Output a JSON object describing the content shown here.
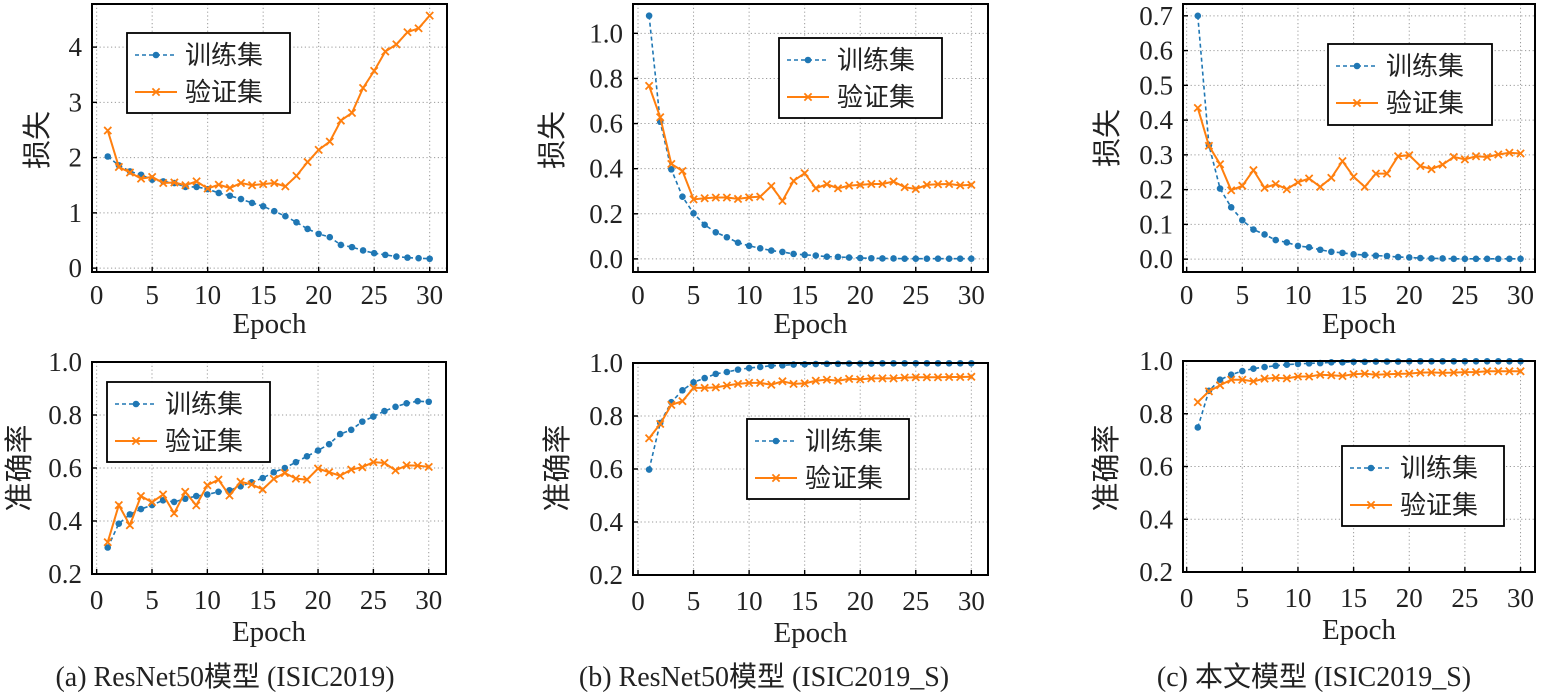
{
  "figure": {
    "captions": [
      "(a) ResNet50模型 (ISIC2019)",
      "(b) ResNet50模型 (ISIC2019_S)",
      "(c) 本文模型 (ISIC2019_S)"
    ]
  },
  "styles": {
    "train_color": "#1f77b4",
    "val_color": "#ff7f0e",
    "grid_color": "#9a9a9a",
    "frame_color": "#000000"
  },
  "chart_data": [
    {
      "id": "a-loss",
      "panel": "(a) ResNet50模型 (ISIC2019)",
      "type": "line",
      "title": "",
      "xlabel": "Epoch",
      "ylabel": "损失",
      "xlim": [
        -0.42,
        31.56
      ],
      "ylim": [
        -0.07,
        4.78
      ],
      "grid": true,
      "legend_placement": "upper-left",
      "xticks": {
        "values": [
          0,
          5,
          10,
          15,
          20,
          25,
          30
        ],
        "labels": [
          "0",
          "5",
          "10",
          "15",
          "20",
          "25",
          "30"
        ]
      },
      "yticks": {
        "values": [
          0,
          1,
          2,
          3,
          4
        ],
        "labels": [
          "0",
          "1",
          "2",
          "3",
          "4"
        ]
      },
      "x": [
        1,
        2,
        3,
        4,
        5,
        6,
        7,
        8,
        9,
        10,
        11,
        12,
        13,
        14,
        15,
        16,
        17,
        18,
        19,
        20,
        21,
        22,
        23,
        24,
        25,
        26,
        27,
        28,
        29,
        30
      ],
      "series": [
        {
          "name": "训练集",
          "color": "#1f77b4",
          "line_style": "dashed",
          "marker": "circle",
          "values": [
            2.02,
            1.86,
            1.75,
            1.69,
            1.6,
            1.57,
            1.54,
            1.47,
            1.47,
            1.43,
            1.36,
            1.31,
            1.25,
            1.18,
            1.12,
            1.03,
            0.94,
            0.83,
            0.71,
            0.62,
            0.56,
            0.42,
            0.38,
            0.32,
            0.27,
            0.24,
            0.21,
            0.19,
            0.18,
            0.17
          ]
        },
        {
          "name": "验证集",
          "color": "#ff7f0e",
          "line_style": "solid",
          "marker": "x",
          "values": [
            2.49,
            1.83,
            1.73,
            1.62,
            1.65,
            1.54,
            1.55,
            1.5,
            1.57,
            1.44,
            1.51,
            1.45,
            1.54,
            1.5,
            1.52,
            1.54,
            1.48,
            1.67,
            1.92,
            2.14,
            2.29,
            2.67,
            2.81,
            3.26,
            3.57,
            3.92,
            4.05,
            4.27,
            4.34,
            4.57
          ]
        }
      ]
    },
    {
      "id": "a-acc",
      "panel": "(a) ResNet50模型 (ISIC2019)",
      "type": "line",
      "title": "",
      "xlabel": "Epoch",
      "ylabel": "准确率",
      "xlim": [
        -0.42,
        31.56
      ],
      "ylim": [
        0.2,
        1.0
      ],
      "grid": true,
      "legend_placement": "upper-left",
      "xticks": {
        "values": [
          0,
          5,
          10,
          15,
          20,
          25,
          30
        ],
        "labels": [
          "0",
          "5",
          "10",
          "15",
          "20",
          "25",
          "30"
        ]
      },
      "yticks": {
        "values": [
          0.2,
          0.4,
          0.6,
          0.8,
          1.0
        ],
        "labels": [
          "0.2",
          "0.4",
          "0.6",
          "0.8",
          "1.0"
        ]
      },
      "x": [
        1,
        2,
        3,
        4,
        5,
        6,
        7,
        8,
        9,
        10,
        11,
        12,
        13,
        14,
        15,
        16,
        17,
        18,
        19,
        20,
        21,
        22,
        23,
        24,
        25,
        26,
        27,
        28,
        29,
        30
      ],
      "series": [
        {
          "name": "训练集",
          "color": "#1f77b4",
          "line_style": "dashed",
          "marker": "circle",
          "values": [
            0.3,
            0.39,
            0.425,
            0.445,
            0.46,
            0.478,
            0.472,
            0.484,
            0.494,
            0.5,
            0.51,
            0.516,
            0.531,
            0.546,
            0.562,
            0.584,
            0.6,
            0.622,
            0.644,
            0.666,
            0.69,
            0.728,
            0.744,
            0.775,
            0.794,
            0.815,
            0.831,
            0.844,
            0.852,
            0.85
          ]
        },
        {
          "name": "验证集",
          "color": "#ff7f0e",
          "line_style": "solid",
          "marker": "x",
          "values": [
            0.32,
            0.46,
            0.384,
            0.494,
            0.471,
            0.5,
            0.429,
            0.51,
            0.459,
            0.535,
            0.556,
            0.496,
            0.548,
            0.538,
            0.519,
            0.559,
            0.581,
            0.56,
            0.556,
            0.598,
            0.584,
            0.571,
            0.594,
            0.603,
            0.622,
            0.619,
            0.591,
            0.61,
            0.609,
            0.604
          ]
        }
      ]
    },
    {
      "id": "b-loss",
      "panel": "(b) ResNet50模型 (ISIC2019_S)",
      "type": "line",
      "title": "",
      "xlabel": "Epoch",
      "ylabel": "损失",
      "xlim": [
        -0.45,
        31.5
      ],
      "ylim": [
        -0.058,
        1.13
      ],
      "grid": true,
      "legend_placement": "upper-right",
      "xticks": {
        "values": [
          0,
          5,
          10,
          15,
          20,
          25,
          30
        ],
        "labels": [
          "0",
          "5",
          "10",
          "15",
          "20",
          "25",
          "30"
        ]
      },
      "yticks": {
        "values": [
          0.0,
          0.2,
          0.4,
          0.6,
          0.8,
          1.0
        ],
        "labels": [
          "0.0",
          "0.2",
          "0.4",
          "0.6",
          "0.8",
          "1.0"
        ]
      },
      "x": [
        1,
        2,
        3,
        4,
        5,
        6,
        7,
        8,
        9,
        10,
        11,
        12,
        13,
        14,
        15,
        16,
        17,
        18,
        19,
        20,
        21,
        22,
        23,
        24,
        25,
        26,
        27,
        28,
        29,
        30
      ],
      "series": [
        {
          "name": "训练集",
          "color": "#1f77b4",
          "line_style": "dashed",
          "marker": "circle",
          "values": [
            1.078,
            0.608,
            0.397,
            0.276,
            0.202,
            0.151,
            0.118,
            0.096,
            0.072,
            0.058,
            0.047,
            0.037,
            0.031,
            0.022,
            0.018,
            0.015,
            0.01,
            0.009,
            0.006,
            0.004,
            0.003,
            0.002,
            0.002,
            0.001,
            0.001,
            0.001,
            0.001,
            0.001,
            0.001,
            0.001
          ]
        },
        {
          "name": "验证集",
          "color": "#ff7f0e",
          "line_style": "solid",
          "marker": "x",
          "values": [
            0.767,
            0.628,
            0.421,
            0.39,
            0.264,
            0.269,
            0.272,
            0.272,
            0.266,
            0.273,
            0.276,
            0.323,
            0.257,
            0.346,
            0.38,
            0.313,
            0.331,
            0.313,
            0.325,
            0.328,
            0.332,
            0.332,
            0.343,
            0.318,
            0.31,
            0.328,
            0.331,
            0.332,
            0.326,
            0.328
          ]
        }
      ]
    },
    {
      "id": "b-acc",
      "panel": "(b) ResNet50模型 (ISIC2019_S)",
      "type": "line",
      "title": "",
      "xlabel": "Epoch",
      "ylabel": "准确率",
      "xlim": [
        -0.45,
        31.5
      ],
      "ylim": [
        0.2,
        1.0
      ],
      "grid": true,
      "legend_placement": "center-right",
      "xticks": {
        "values": [
          0,
          5,
          10,
          15,
          20,
          25,
          30
        ],
        "labels": [
          "0",
          "5",
          "10",
          "15",
          "20",
          "25",
          "30"
        ]
      },
      "yticks": {
        "values": [
          0.2,
          0.4,
          0.6,
          0.8,
          1.0
        ],
        "labels": [
          "0.2",
          "0.4",
          "0.6",
          "0.8",
          "1.0"
        ]
      },
      "x": [
        1,
        2,
        3,
        4,
        5,
        6,
        7,
        8,
        9,
        10,
        11,
        12,
        13,
        14,
        15,
        16,
        17,
        18,
        19,
        20,
        21,
        22,
        23,
        24,
        25,
        26,
        27,
        28,
        29,
        30
      ],
      "series": [
        {
          "name": "训练集",
          "color": "#1f77b4",
          "line_style": "dashed",
          "marker": "circle",
          "values": [
            0.598,
            0.774,
            0.852,
            0.897,
            0.927,
            0.943,
            0.959,
            0.966,
            0.975,
            0.981,
            0.985,
            0.99,
            0.991,
            0.994,
            0.995,
            0.996,
            0.997,
            0.997,
            0.998,
            0.998,
            0.998,
            0.999,
            0.999,
            0.999,
            0.999,
            0.999,
            0.999,
            0.999,
            0.999,
            0.999
          ]
        },
        {
          "name": "验证集",
          "color": "#ff7f0e",
          "line_style": "solid",
          "marker": "x",
          "values": [
            0.716,
            0.77,
            0.842,
            0.856,
            0.906,
            0.906,
            0.908,
            0.915,
            0.921,
            0.925,
            0.925,
            0.918,
            0.931,
            0.921,
            0.923,
            0.933,
            0.937,
            0.933,
            0.94,
            0.938,
            0.942,
            0.942,
            0.942,
            0.945,
            0.946,
            0.946,
            0.946,
            0.947,
            0.947,
            0.948
          ]
        }
      ]
    },
    {
      "id": "c-loss",
      "panel": "(c) 本文模型 (ISIC2019_S)",
      "type": "line",
      "title": "",
      "xlabel": "Epoch",
      "ylabel": "损失",
      "xlim": [
        -0.33,
        31.3
      ],
      "ylim": [
        -0.037,
        0.734
      ],
      "grid": true,
      "legend_placement": "upper-right",
      "xticks": {
        "values": [
          0,
          5,
          10,
          15,
          20,
          25,
          30
        ],
        "labels": [
          "0",
          "5",
          "10",
          "15",
          "20",
          "25",
          "30"
        ]
      },
      "yticks": {
        "values": [
          0.0,
          0.1,
          0.2,
          0.3,
          0.4,
          0.5,
          0.6,
          0.7
        ],
        "labels": [
          "0.0",
          "0.1",
          "0.2",
          "0.3",
          "0.4",
          "0.5",
          "0.6",
          "0.7"
        ]
      },
      "x": [
        1,
        2,
        3,
        4,
        5,
        6,
        7,
        8,
        9,
        10,
        11,
        12,
        13,
        14,
        15,
        16,
        17,
        18,
        19,
        20,
        21,
        22,
        23,
        24,
        25,
        26,
        27,
        28,
        29,
        30
      ],
      "series": [
        {
          "name": "训练集",
          "color": "#1f77b4",
          "line_style": "dashed",
          "marker": "circle",
          "values": [
            0.7,
            0.328,
            0.203,
            0.149,
            0.112,
            0.085,
            0.071,
            0.055,
            0.048,
            0.038,
            0.034,
            0.027,
            0.021,
            0.018,
            0.014,
            0.012,
            0.01,
            0.009,
            0.006,
            0.005,
            0.003,
            0.002,
            0.002,
            0.001,
            0.001,
            0.001,
            0.001,
            0.001,
            0.001,
            0.001
          ]
        },
        {
          "name": "验证集",
          "color": "#ff7f0e",
          "line_style": "solid",
          "marker": "x",
          "values": [
            0.435,
            0.326,
            0.273,
            0.198,
            0.211,
            0.256,
            0.205,
            0.216,
            0.201,
            0.221,
            0.232,
            0.208,
            0.234,
            0.282,
            0.237,
            0.208,
            0.246,
            0.246,
            0.296,
            0.299,
            0.268,
            0.259,
            0.272,
            0.294,
            0.287,
            0.296,
            0.294,
            0.301,
            0.306,
            0.304
          ]
        }
      ]
    },
    {
      "id": "c-acc",
      "panel": "(c) 本文模型 (ISIC2019_S)",
      "type": "line",
      "title": "",
      "xlabel": "Epoch",
      "ylabel": "准确率",
      "xlim": [
        -0.33,
        31.3
      ],
      "ylim": [
        0.2,
        1.0
      ],
      "grid": true,
      "legend_placement": "center-right",
      "xticks": {
        "values": [
          0,
          5,
          10,
          15,
          20,
          25,
          30
        ],
        "labels": [
          "0",
          "5",
          "10",
          "15",
          "20",
          "25",
          "30"
        ]
      },
      "yticks": {
        "values": [
          0.2,
          0.4,
          0.6,
          0.8,
          1.0
        ],
        "labels": [
          "0.2",
          "0.4",
          "0.6",
          "0.8",
          "1.0"
        ]
      },
      "x": [
        1,
        2,
        3,
        4,
        5,
        6,
        7,
        8,
        9,
        10,
        11,
        12,
        13,
        14,
        15,
        16,
        17,
        18,
        19,
        20,
        21,
        22,
        23,
        24,
        25,
        26,
        27,
        28,
        29,
        30
      ],
      "series": [
        {
          "name": "训练集",
          "color": "#1f77b4",
          "line_style": "dashed",
          "marker": "circle",
          "values": [
            0.748,
            0.887,
            0.929,
            0.948,
            0.962,
            0.971,
            0.977,
            0.982,
            0.986,
            0.989,
            0.991,
            0.992,
            0.995,
            0.995,
            0.997,
            0.997,
            0.998,
            0.998,
            0.998,
            0.999,
            0.999,
            0.999,
            0.999,
            0.999,
            0.999,
            0.999,
            0.999,
            0.999,
            0.999,
            0.999
          ]
        },
        {
          "name": "验证集",
          "color": "#ff7f0e",
          "line_style": "solid",
          "marker": "x",
          "values": [
            0.844,
            0.885,
            0.908,
            0.929,
            0.929,
            0.923,
            0.933,
            0.936,
            0.934,
            0.941,
            0.941,
            0.948,
            0.946,
            0.943,
            0.95,
            0.952,
            0.948,
            0.95,
            0.951,
            0.952,
            0.956,
            0.957,
            0.955,
            0.956,
            0.958,
            0.958,
            0.961,
            0.961,
            0.961,
            0.961
          ]
        }
      ]
    }
  ]
}
